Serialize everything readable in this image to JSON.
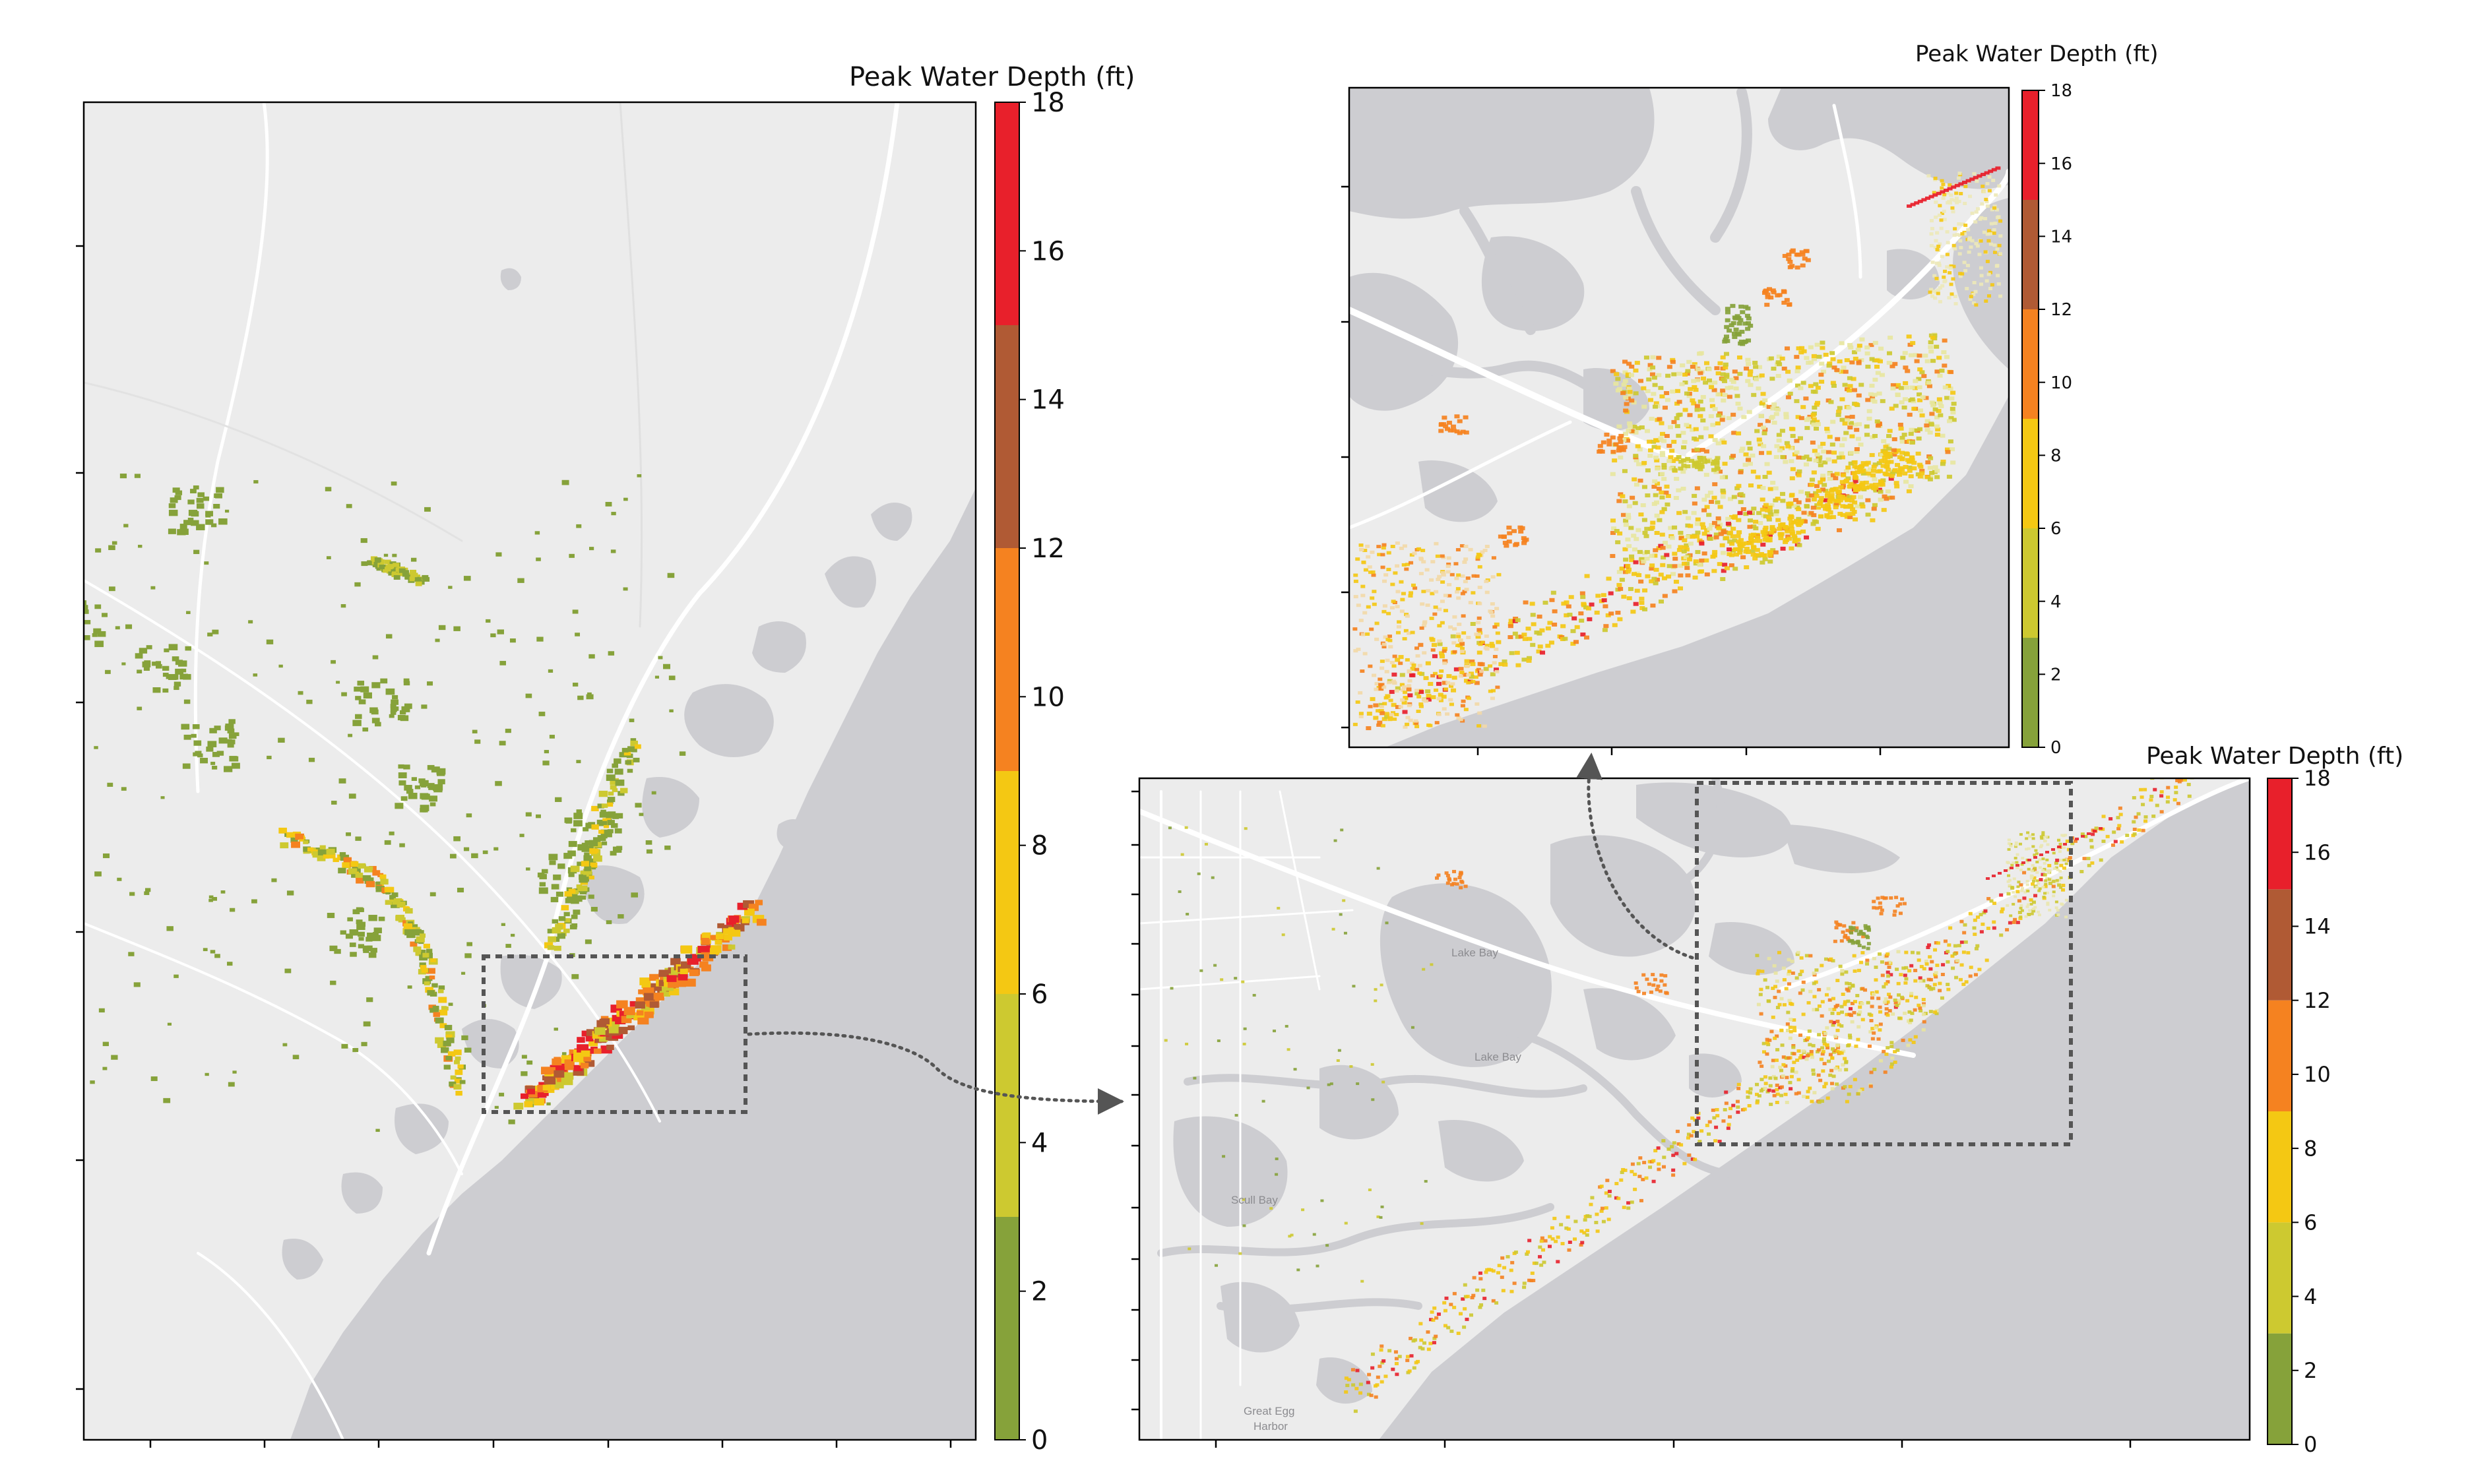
{
  "colorbar_classes": [
    {
      "range": [
        0,
        3
      ],
      "color": "#86a23a"
    },
    {
      "range": [
        3,
        6
      ],
      "color": "#cdc930"
    },
    {
      "range": [
        6,
        9
      ],
      "color": "#f4c813"
    },
    {
      "range": [
        9,
        12
      ],
      "color": "#f58220"
    },
    {
      "range": [
        12,
        15
      ],
      "color": "#b05a34"
    },
    {
      "range": [
        15,
        18
      ],
      "color": "#e8202b"
    }
  ],
  "palette": {
    "water": "#cdcdd1",
    "land": "#ececec",
    "road": "#ffffff",
    "frame": "#000000",
    "callout": "#555555"
  },
  "panels": {
    "regional": {
      "colorbar_title": "Peak Water Depth (ft)",
      "colorbar_ticks": [
        "0",
        "2",
        "4",
        "6",
        "8",
        "10",
        "12",
        "14",
        "16",
        "18"
      ]
    },
    "zoom1": {
      "colorbar_title": "Peak Water Depth (ft)",
      "colorbar_ticks": [
        "0",
        "2",
        "4",
        "6",
        "8",
        "10",
        "12",
        "14",
        "16",
        "18"
      ],
      "place_labels": [
        "Lake Bay",
        "Lake Bay",
        "Scull Bay",
        "Great Egg",
        "Harbor"
      ]
    },
    "zoom2": {
      "colorbar_title": "Peak Water Depth (ft)",
      "colorbar_ticks": [
        "0",
        "2",
        "4",
        "6",
        "8",
        "10",
        "12",
        "14",
        "16",
        "18"
      ]
    }
  }
}
